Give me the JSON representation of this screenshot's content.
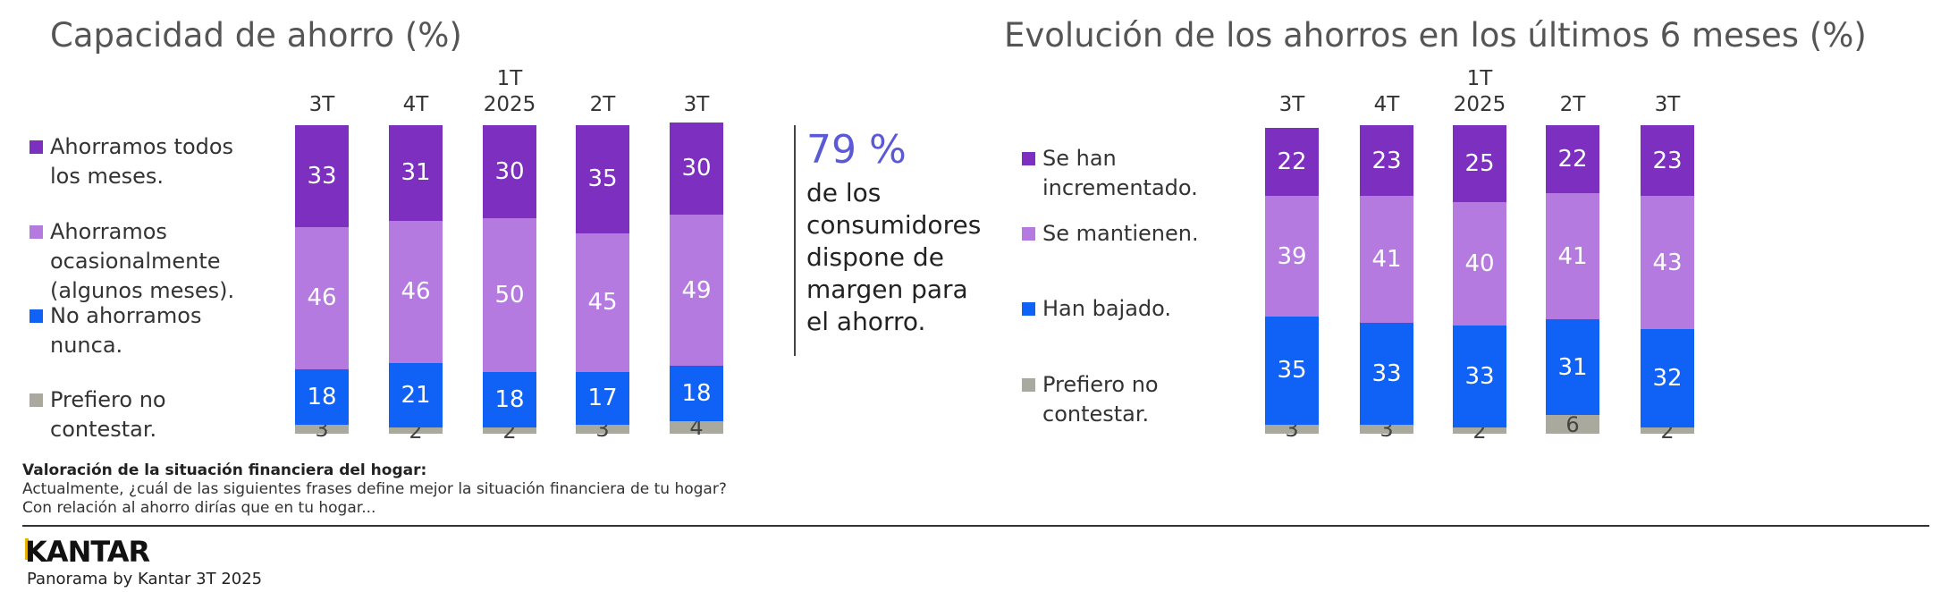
{
  "chart_data": [
    {
      "type": "stacked-bar",
      "title": "Capacidad de ahorro (%)",
      "categories": [
        "3T",
        "4T",
        "1T 2025",
        "2T",
        "3T"
      ],
      "series": [
        {
          "name": "Ahorramos todos los meses.",
          "color": "#7d30bf",
          "values": [
            33,
            31,
            30,
            35,
            30
          ]
        },
        {
          "name": "Ahorramos ocasionalmente (algunos meses).",
          "color": "#b47ae0",
          "values": [
            46,
            46,
            50,
            45,
            49
          ]
        },
        {
          "name": "No ahorramos nunca.",
          "color": "#0f62f5",
          "values": [
            18,
            21,
            18,
            17,
            18
          ]
        },
        {
          "name": "Prefiero no contestar.",
          "color": "#a9a99e",
          "values": [
            3,
            2,
            2,
            3,
            4
          ]
        }
      ]
    },
    {
      "type": "stacked-bar",
      "title": "Evolución de los ahorros en los últimos 6 meses (%)",
      "categories": [
        "3T",
        "4T",
        "1T 2025",
        "2T",
        "3T"
      ],
      "series": [
        {
          "name": "Se han incrementado.",
          "color": "#7d30bf",
          "values": [
            22,
            23,
            25,
            22,
            23
          ]
        },
        {
          "name": "Se mantienen.",
          "color": "#b47ae0",
          "values": [
            39,
            41,
            40,
            41,
            43
          ]
        },
        {
          "name": "Han bajado.",
          "color": "#0f62f5",
          "values": [
            35,
            33,
            33,
            31,
            32
          ]
        },
        {
          "name": "Prefiero no contestar.",
          "color": "#a9a99e",
          "values": [
            3,
            3,
            2,
            6,
            2
          ]
        }
      ]
    }
  ],
  "callout": {
    "value": "79 %",
    "text": "de los consumidores dispone de margen para el ahorro."
  },
  "footnote": {
    "title": "Valoración de la situación financiera del hogar:",
    "lines": [
      "Actualmente, ¿cuál de las siguientes frases define mejor la situación financiera de tu hogar?",
      "Con relación al ahorro dirías que en tu hogar..."
    ]
  },
  "footer": {
    "logo": "KANTAR",
    "caption": "Panorama by Kantar 3T 2025"
  }
}
